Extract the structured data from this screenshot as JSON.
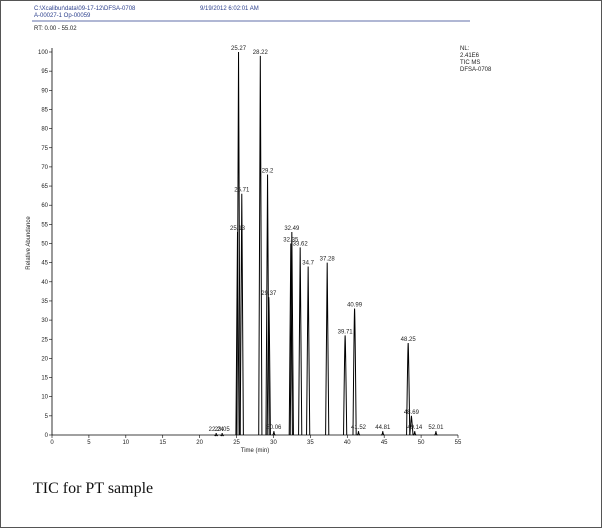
{
  "chart_data": {
    "type": "chromatogram",
    "file_path": "C:\\Xcalibur\\data\\09-17-12\\DFSA-0708",
    "sample_id": "A-00027-1 Op-00059",
    "timestamp": "9/19/2012 6:02:01 AM",
    "title": "RT: 0.00 - 55.02",
    "info": [
      "NL:",
      "2.41E6",
      "TIC MS",
      "DFSA-0708"
    ],
    "xlabel": "Time (min)",
    "ylabel": "Relative Abundance",
    "caption": "TIC for PT sample",
    "color": "#000000",
    "x": [
      22.24,
      23.05,
      25.13,
      25.27,
      25.71,
      28.22,
      29.2,
      29.37,
      30.06,
      32.35,
      32.49,
      33.62,
      34.7,
      37.28,
      39.71,
      40.99,
      41.52,
      44.81,
      48.25,
      48.69,
      49.14,
      52.01
    ],
    "values": [
      0.5,
      0.5,
      53,
      100,
      63,
      99,
      68,
      36,
      1,
      50,
      53,
      49,
      44,
      45,
      26,
      33,
      1,
      1,
      24,
      5,
      1,
      1
    ],
    "xlim": [
      0,
      55
    ],
    "xticks": [
      0,
      5,
      10,
      15,
      20,
      25,
      30,
      35,
      40,
      45,
      50,
      55
    ],
    "ylim": [
      0,
      100
    ],
    "yticks": [
      0,
      5,
      10,
      15,
      20,
      25,
      30,
      35,
      40,
      45,
      50,
      55,
      60,
      65,
      70,
      75,
      80,
      85,
      90,
      95,
      100
    ]
  }
}
